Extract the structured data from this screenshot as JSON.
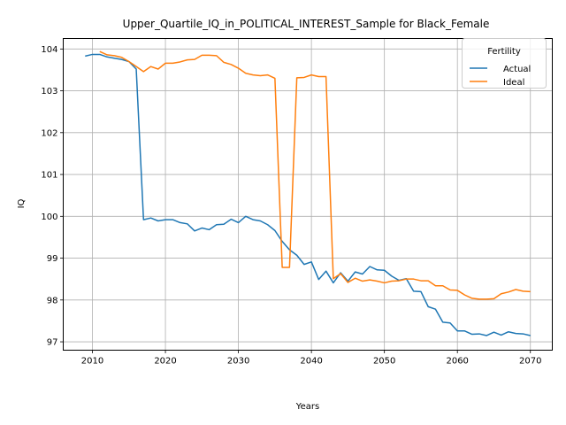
{
  "chart_data": {
    "type": "line",
    "title": "Upper_Quartile_IQ_in_POLITICAL_INTEREST_Sample for Black_Female",
    "xlabel": "Years",
    "ylabel": "IQ",
    "xlim": [
      2006,
      2073
    ],
    "ylim": [
      96.8,
      104.25
    ],
    "xticks": [
      2010,
      2020,
      2030,
      2040,
      2050,
      2060,
      2070
    ],
    "yticks": [
      97,
      98,
      99,
      100,
      101,
      102,
      103,
      104
    ],
    "grid": true,
    "legend": {
      "title": "Fertility",
      "placement": "top-right"
    },
    "series": [
      {
        "name": "Actual",
        "color": "#1f77b4",
        "x": [
          2009,
          2010,
          2011,
          2012,
          2013,
          2014,
          2015,
          2016,
          2017,
          2018,
          2019,
          2020,
          2021,
          2022,
          2023,
          2024,
          2025,
          2026,
          2027,
          2028,
          2029,
          2030,
          2031,
          2032,
          2033,
          2034,
          2035,
          2036,
          2037,
          2038,
          2039,
          2040,
          2041,
          2042,
          2043,
          2044,
          2045,
          2046,
          2047,
          2048,
          2049,
          2050,
          2051,
          2052,
          2053,
          2054,
          2055,
          2056,
          2057,
          2058,
          2059,
          2060,
          2061,
          2062,
          2063,
          2064,
          2065,
          2066,
          2067,
          2068,
          2069,
          2070
        ],
        "values": [
          103.83,
          103.87,
          103.87,
          103.81,
          103.78,
          103.75,
          103.7,
          103.52,
          99.92,
          99.96,
          99.89,
          99.92,
          99.92,
          99.85,
          99.82,
          99.65,
          99.72,
          99.68,
          99.8,
          99.81,
          99.93,
          99.85,
          100.0,
          99.92,
          99.89,
          99.8,
          99.66,
          99.4,
          99.2,
          99.07,
          98.85,
          98.91,
          98.49,
          98.69,
          98.41,
          98.65,
          98.45,
          98.67,
          98.62,
          98.8,
          98.72,
          98.71,
          98.57,
          98.47,
          98.51,
          98.21,
          98.2,
          97.84,
          97.78,
          97.47,
          97.45,
          97.26,
          97.26,
          97.18,
          97.19,
          97.15,
          97.23,
          97.16,
          97.24,
          97.2,
          97.19,
          97.15
        ]
      },
      {
        "name": "Ideal",
        "color": "#ff7f0e",
        "x": [
          2011,
          2012,
          2013,
          2014,
          2015,
          2016,
          2017,
          2018,
          2019,
          2020,
          2021,
          2022,
          2023,
          2024,
          2025,
          2026,
          2027,
          2028,
          2029,
          2030,
          2031,
          2032,
          2033,
          2034,
          2035,
          2036,
          2037,
          2038,
          2039,
          2040,
          2041,
          2042,
          2043,
          2044,
          2045,
          2046,
          2047,
          2048,
          2049,
          2050,
          2051,
          2052,
          2053,
          2054,
          2055,
          2056,
          2057,
          2058,
          2059,
          2060,
          2061,
          2062,
          2063,
          2064,
          2065,
          2066,
          2067,
          2068,
          2069,
          2070
        ],
        "values": [
          103.94,
          103.86,
          103.84,
          103.8,
          103.7,
          103.58,
          103.46,
          103.58,
          103.52,
          103.66,
          103.66,
          103.69,
          103.74,
          103.75,
          103.85,
          103.85,
          103.84,
          103.68,
          103.63,
          103.54,
          103.42,
          103.38,
          103.36,
          103.38,
          103.3,
          98.78,
          98.78,
          103.31,
          103.32,
          103.38,
          103.34,
          103.34,
          98.51,
          98.63,
          98.42,
          98.52,
          98.45,
          98.48,
          98.45,
          98.41,
          98.45,
          98.46,
          98.5,
          98.5,
          98.46,
          98.46,
          98.34,
          98.34,
          98.24,
          98.23,
          98.12,
          98.04,
          98.02,
          98.02,
          98.03,
          98.15,
          98.19,
          98.25,
          98.21,
          98.2
        ]
      }
    ]
  }
}
